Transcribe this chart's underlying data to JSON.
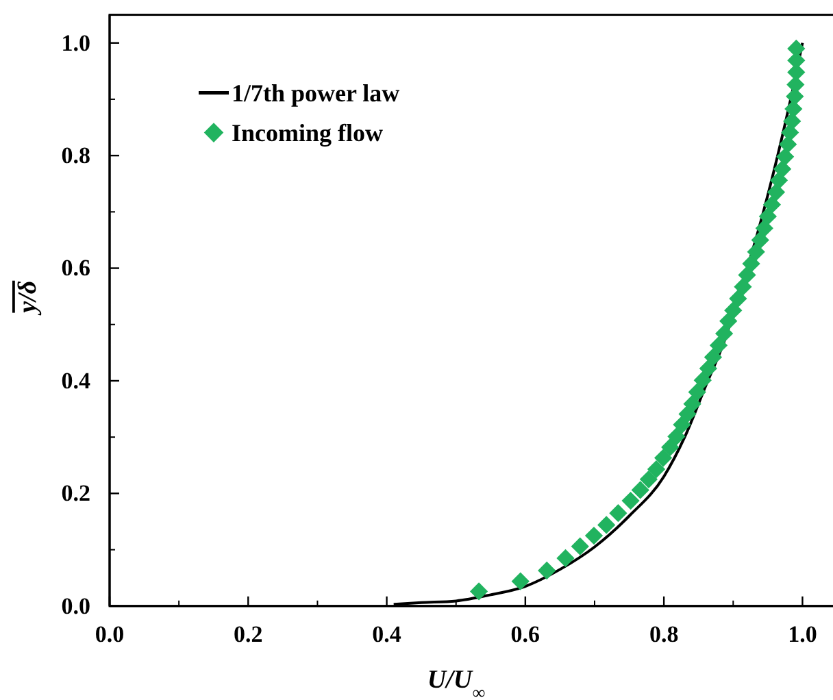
{
  "chart_data": {
    "type": "scatter",
    "xlabel": "U/U$_{∞}$",
    "ylabel": "y/δ",
    "xlim": [
      0,
      1.05
    ],
    "ylim": [
      0,
      1.05
    ],
    "xticks": [
      {
        "value": 0,
        "label": "0.0"
      },
      0.2,
      0.4,
      0.6,
      0.8,
      {
        "value": 1,
        "label": "1.0"
      }
    ],
    "yticks": [
      {
        "value": 0,
        "label": "0.0"
      },
      0.2,
      0.4,
      0.6,
      0.8,
      {
        "value": 1,
        "label": "1.0"
      }
    ],
    "grid": false,
    "legend": "top left",
    "series": [
      {
        "name": "1/7th power law",
        "type": "line",
        "color": "#000000",
        "line_style": "solid",
        "marker": "none",
        "x": [
          0.41,
          0.45,
          0.5,
          0.55,
          0.6,
          0.65,
          0.7,
          0.75,
          0.8,
          0.83,
          0.86,
          0.89,
          0.91,
          0.93,
          0.95,
          0.97,
          0.99,
          1.0
        ],
        "values": [
          0.003,
          0.006,
          0.009,
          0.02,
          0.035,
          0.065,
          0.105,
          0.16,
          0.23,
          0.3,
          0.39,
          0.48,
          0.56,
          0.64,
          0.73,
          0.83,
          0.94,
          1.0
        ]
      },
      {
        "name": "Incoming flow",
        "color": "#21b35f",
        "marker": "diamond",
        "x": [
          0.533,
          0.593,
          0.631,
          0.658,
          0.679,
          0.699,
          0.717,
          0.734,
          0.752,
          0.766,
          0.778,
          0.789,
          0.799,
          0.809,
          0.818,
          0.826,
          0.834,
          0.841,
          0.848,
          0.856,
          0.864,
          0.871,
          0.879,
          0.887,
          0.893,
          0.9,
          0.907,
          0.914,
          0.92,
          0.926,
          0.933,
          0.939,
          0.945,
          0.95,
          0.956,
          0.962,
          0.966,
          0.971,
          0.975,
          0.979,
          0.982,
          0.985,
          0.987,
          0.989,
          0.99,
          0.991,
          0.991,
          0.991
        ],
        "values": [
          0.026,
          0.044,
          0.063,
          0.085,
          0.106,
          0.125,
          0.144,
          0.165,
          0.187,
          0.206,
          0.225,
          0.243,
          0.263,
          0.282,
          0.301,
          0.322,
          0.341,
          0.359,
          0.38,
          0.401,
          0.422,
          0.442,
          0.463,
          0.484,
          0.506,
          0.525,
          0.546,
          0.567,
          0.588,
          0.608,
          0.629,
          0.65,
          0.671,
          0.692,
          0.713,
          0.735,
          0.756,
          0.776,
          0.798,
          0.82,
          0.841,
          0.861,
          0.883,
          0.905,
          0.926,
          0.948,
          0.969,
          0.99
        ]
      }
    ]
  }
}
